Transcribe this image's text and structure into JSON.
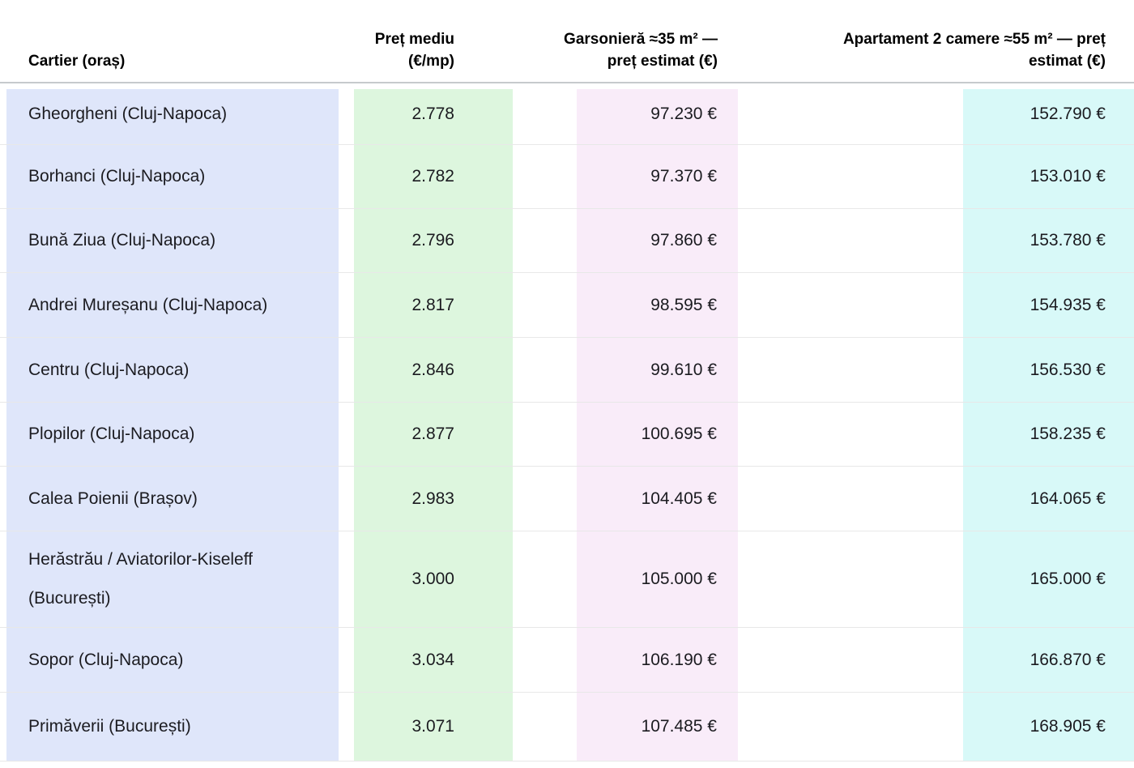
{
  "colors": {
    "col_cartier_highlight": "#dfe6fa",
    "col_pret_highlight": "#ddf6de",
    "col_garsoniera_highlight": "#f9ecf9",
    "col_apartament_highlight": "#d8f9f8",
    "header_rule": "#c6cacd",
    "row_rule": "#e8e8e8"
  },
  "table": {
    "columns": [
      {
        "header_line1": "Cartier (oraș)",
        "header_line2": ""
      },
      {
        "header_line1": "Preț mediu",
        "header_line2": "(€/mp)"
      },
      {
        "header_line1": "Garsonieră ≈35 m² —",
        "header_line2": "preț estimat (€)"
      },
      {
        "header_line1": "Apartament 2 camere ≈55 m² — preț",
        "header_line2": "estimat (€)"
      }
    ],
    "rows": [
      {
        "cartier": "Gheorgheni (Cluj-Napoca)",
        "pret_mediu": "2.778",
        "garsoniera_pret": "97.230 €",
        "apartament_pret": "152.790 €"
      },
      {
        "cartier": "Borhanci (Cluj-Napoca)",
        "pret_mediu": "2.782",
        "garsoniera_pret": "97.370 €",
        "apartament_pret": "153.010 €"
      },
      {
        "cartier": "Bună Ziua (Cluj-Napoca)",
        "pret_mediu": "2.796",
        "garsoniera_pret": "97.860 €",
        "apartament_pret": "153.780 €"
      },
      {
        "cartier": "Andrei Mureșanu (Cluj-Napoca)",
        "pret_mediu": "2.817",
        "garsoniera_pret": "98.595 €",
        "apartament_pret": "154.935 €"
      },
      {
        "cartier": "Centru (Cluj-Napoca)",
        "pret_mediu": "2.846",
        "garsoniera_pret": "99.610 €",
        "apartament_pret": "156.530 €"
      },
      {
        "cartier": "Plopilor (Cluj-Napoca)",
        "pret_mediu": "2.877",
        "garsoniera_pret": "100.695 €",
        "apartament_pret": "158.235 €"
      },
      {
        "cartier": "Calea Poienii (Brașov)",
        "pret_mediu": "2.983",
        "garsoniera_pret": "104.405 €",
        "apartament_pret": "164.065 €"
      },
      {
        "cartier": "Herăstrău / Aviatorilor-Kiseleff (București)",
        "pret_mediu": "3.000",
        "garsoniera_pret": "105.000 €",
        "apartament_pret": "165.000 €"
      },
      {
        "cartier": "Sopor (Cluj-Napoca)",
        "pret_mediu": "3.034",
        "garsoniera_pret": "106.190 €",
        "apartament_pret": "166.870 €"
      },
      {
        "cartier": "Primăverii (București)",
        "pret_mediu": "3.071",
        "garsoniera_pret": "107.485 €",
        "apartament_pret": "168.905 €"
      }
    ]
  }
}
